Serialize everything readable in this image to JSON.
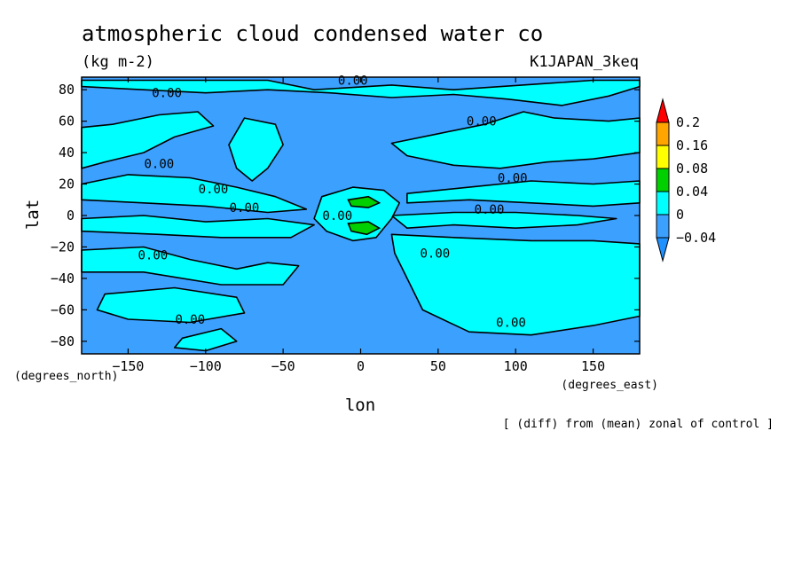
{
  "header": {
    "title": "atmospheric cloud condensed water co",
    "units": "(kg m-2)",
    "run_id": "K1JAPAN_3keq",
    "note": "[ (diff) from (mean) zonal of control ]"
  },
  "chart_data": {
    "type": "heatmap",
    "xlabel": "lon",
    "ylabel": "lat",
    "x_units": "(degrees_east)",
    "y_units": "(degrees_north)",
    "xlim": [
      -180,
      180
    ],
    "ylim": [
      -88,
      88
    ],
    "x_ticks": [
      -150,
      -100,
      -50,
      0,
      50,
      100,
      150
    ],
    "y_ticks": [
      -80,
      -60,
      -40,
      -20,
      0,
      20,
      40,
      60,
      80
    ],
    "x_tick_labels": [
      "−150",
      "−100",
      "−50",
      "0",
      "50",
      "100",
      "150"
    ],
    "y_tick_labels": [
      "−80",
      "−60",
      "−40",
      "−20",
      "0",
      "20",
      "40",
      "60",
      "80"
    ],
    "colorbar": {
      "levels": [
        -0.04,
        0,
        0.04,
        0.08,
        0.16,
        0.2
      ],
      "labels": [
        "−0.04",
        "0",
        "0.04",
        "0.08",
        "0.16",
        "0.2"
      ],
      "colors": [
        "#1e90ff",
        "#3ca0ff",
        "#00ffff",
        "#00d000",
        "#ffff00",
        "#ffa500",
        "#ff0000"
      ],
      "extend": "both"
    },
    "background_color": "#3ca0ff",
    "positive_color": "#00ffff",
    "peak_color": "#00d000",
    "contour_labels": [
      {
        "text": "0.00",
        "lon": -125,
        "lat": 78
      },
      {
        "text": "0.00",
        "lon": -5,
        "lat": 86
      },
      {
        "text": "0.00",
        "lon": 78,
        "lat": 60
      },
      {
        "text": "0.00",
        "lon": -130,
        "lat": 33
      },
      {
        "text": "0.00",
        "lon": -95,
        "lat": 17
      },
      {
        "text": "0.00",
        "lon": -75,
        "lat": 5
      },
      {
        "text": "0.00",
        "lon": -15,
        "lat": 0
      },
      {
        "text": "0.00",
        "lon": 98,
        "lat": 24
      },
      {
        "text": "0.00",
        "lon": 83,
        "lat": 4
      },
      {
        "text": "0.00",
        "lon": 48,
        "lat": -24
      },
      {
        "text": "0.00",
        "lon": -134,
        "lat": -25
      },
      {
        "text": "0.00",
        "lon": -110,
        "lat": -66
      },
      {
        "text": "0.00",
        "lon": 97,
        "lat": -68
      }
    ],
    "positive_regions": [
      {
        "name": "arctic-band",
        "points": [
          [
            -180,
            86
          ],
          [
            -60,
            86
          ],
          [
            -30,
            80
          ],
          [
            20,
            83
          ],
          [
            60,
            80
          ],
          [
            120,
            84
          ],
          [
            150,
            86
          ],
          [
            180,
            86
          ],
          [
            180,
            82
          ],
          [
            160,
            76
          ],
          [
            130,
            70
          ],
          [
            95,
            74
          ],
          [
            60,
            77
          ],
          [
            20,
            75
          ],
          [
            -20,
            78
          ],
          [
            -60,
            80
          ],
          [
            -100,
            78
          ],
          [
            -140,
            80
          ],
          [
            -180,
            82
          ]
        ]
      },
      {
        "name": "north-pacific-atlantic",
        "points": [
          [
            -180,
            56
          ],
          [
            -160,
            58
          ],
          [
            -130,
            64
          ],
          [
            -105,
            66
          ],
          [
            -95,
            57
          ],
          [
            -120,
            50
          ],
          [
            -140,
            40
          ],
          [
            -165,
            34
          ],
          [
            -180,
            30
          ]
        ]
      },
      {
        "name": "north-atlantic-lobe",
        "points": [
          [
            -75,
            62
          ],
          [
            -55,
            58
          ],
          [
            -50,
            45
          ],
          [
            -60,
            30
          ],
          [
            -70,
            22
          ],
          [
            -80,
            30
          ],
          [
            -85,
            45
          ]
        ]
      },
      {
        "name": "east-asia-north",
        "points": [
          [
            20,
            46
          ],
          [
            50,
            52
          ],
          [
            80,
            58
          ],
          [
            105,
            66
          ],
          [
            125,
            62
          ],
          [
            160,
            60
          ],
          [
            180,
            62
          ],
          [
            180,
            40
          ],
          [
            150,
            36
          ],
          [
            120,
            34
          ],
          [
            90,
            30
          ],
          [
            60,
            32
          ],
          [
            30,
            38
          ]
        ]
      },
      {
        "name": "north-subtropic-east",
        "points": [
          [
            30,
            14
          ],
          [
            70,
            18
          ],
          [
            110,
            22
          ],
          [
            150,
            20
          ],
          [
            180,
            22
          ],
          [
            180,
            8
          ],
          [
            150,
            6
          ],
          [
            110,
            8
          ],
          [
            70,
            10
          ],
          [
            30,
            8
          ]
        ]
      },
      {
        "name": "north-subtropic-west",
        "points": [
          [
            -180,
            20
          ],
          [
            -150,
            26
          ],
          [
            -110,
            24
          ],
          [
            -80,
            18
          ],
          [
            -55,
            12
          ],
          [
            -35,
            4
          ],
          [
            -60,
            2
          ],
          [
            -100,
            6
          ],
          [
            -140,
            8
          ],
          [
            -180,
            10
          ]
        ]
      },
      {
        "name": "equatorial-west",
        "points": [
          [
            -180,
            -2
          ],
          [
            -140,
            0
          ],
          [
            -100,
            -4
          ],
          [
            -60,
            -2
          ],
          [
            -30,
            -6
          ],
          [
            -45,
            -14
          ],
          [
            -90,
            -14
          ],
          [
            -130,
            -12
          ],
          [
            -180,
            -10
          ]
        ]
      },
      {
        "name": "equatorial-east-tongue",
        "points": [
          [
            20,
            0
          ],
          [
            60,
            2
          ],
          [
            100,
            2
          ],
          [
            140,
            0
          ],
          [
            165,
            -2
          ],
          [
            140,
            -6
          ],
          [
            100,
            -8
          ],
          [
            60,
            -6
          ],
          [
            30,
            -8
          ]
        ]
      },
      {
        "name": "central-blob",
        "points": [
          [
            -25,
            12
          ],
          [
            -5,
            18
          ],
          [
            15,
            16
          ],
          [
            25,
            8
          ],
          [
            20,
            -2
          ],
          [
            10,
            -14
          ],
          [
            -5,
            -16
          ],
          [
            -22,
            -10
          ],
          [
            -30,
            -2
          ]
        ]
      },
      {
        "name": "south-subtropic",
        "points": [
          [
            -180,
            -22
          ],
          [
            -140,
            -20
          ],
          [
            -110,
            -28
          ],
          [
            -80,
            -34
          ],
          [
            -60,
            -30
          ],
          [
            -40,
            -32
          ],
          [
            -50,
            -44
          ],
          [
            -90,
            -44
          ],
          [
            -140,
            -36
          ],
          [
            -180,
            -36
          ]
        ]
      },
      {
        "name": "south-east-big",
        "points": [
          [
            20,
            -12
          ],
          [
            60,
            -14
          ],
          [
            110,
            -16
          ],
          [
            150,
            -16
          ],
          [
            180,
            -18
          ],
          [
            180,
            -64
          ],
          [
            150,
            -70
          ],
          [
            110,
            -76
          ],
          [
            70,
            -74
          ],
          [
            40,
            -60
          ],
          [
            30,
            -40
          ],
          [
            22,
            -24
          ]
        ]
      },
      {
        "name": "south-west-lobe",
        "points": [
          [
            -165,
            -50
          ],
          [
            -120,
            -46
          ],
          [
            -80,
            -52
          ],
          [
            -75,
            -62
          ],
          [
            -110,
            -68
          ],
          [
            -150,
            -66
          ],
          [
            -170,
            -60
          ]
        ]
      },
      {
        "name": "antarctic-west-patch",
        "points": [
          [
            -115,
            -78
          ],
          [
            -90,
            -72
          ],
          [
            -80,
            -80
          ],
          [
            -100,
            -86
          ],
          [
            -120,
            -84
          ]
        ]
      }
    ],
    "peak_regions": [
      {
        "name": "north-peak",
        "points": [
          [
            -8,
            10
          ],
          [
            5,
            12
          ],
          [
            12,
            8
          ],
          [
            5,
            5
          ],
          [
            -6,
            6
          ]
        ]
      },
      {
        "name": "south-peak",
        "points": [
          [
            -8,
            -5
          ],
          [
            5,
            -4
          ],
          [
            12,
            -8
          ],
          [
            4,
            -12
          ],
          [
            -6,
            -10
          ]
        ]
      }
    ]
  }
}
